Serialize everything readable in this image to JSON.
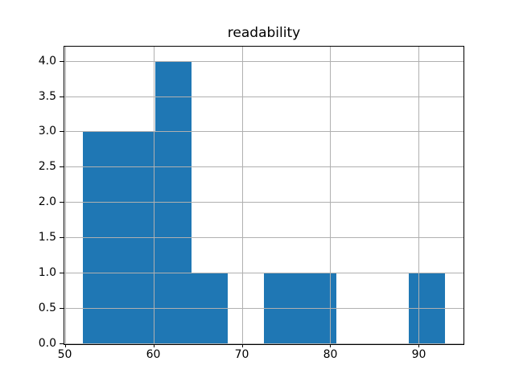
{
  "chart_data": {
    "type": "bar",
    "subtype": "histogram",
    "title": "readability",
    "xlabel": "",
    "ylabel": "",
    "bin_edges": [
      52.0,
      56.1,
      60.2,
      64.3,
      68.4,
      72.5,
      76.6,
      80.7,
      84.8,
      88.9,
      93.0
    ],
    "counts": [
      3,
      3,
      4,
      1,
      0,
      1,
      1,
      0,
      0,
      1
    ],
    "xlim": [
      49.95,
      95.05
    ],
    "ylim": [
      0,
      4.2
    ],
    "x_ticks": [
      50,
      60,
      70,
      80,
      90
    ],
    "y_ticks": [
      0.0,
      0.5,
      1.0,
      1.5,
      2.0,
      2.5,
      3.0,
      3.5,
      4.0
    ],
    "y_tick_decimals": 1,
    "grid": true,
    "legend": "none",
    "bar_color": "#1f77b4",
    "grid_color": "#b0b0b0",
    "axis_color": "#000000",
    "background_color": "#ffffff"
  }
}
